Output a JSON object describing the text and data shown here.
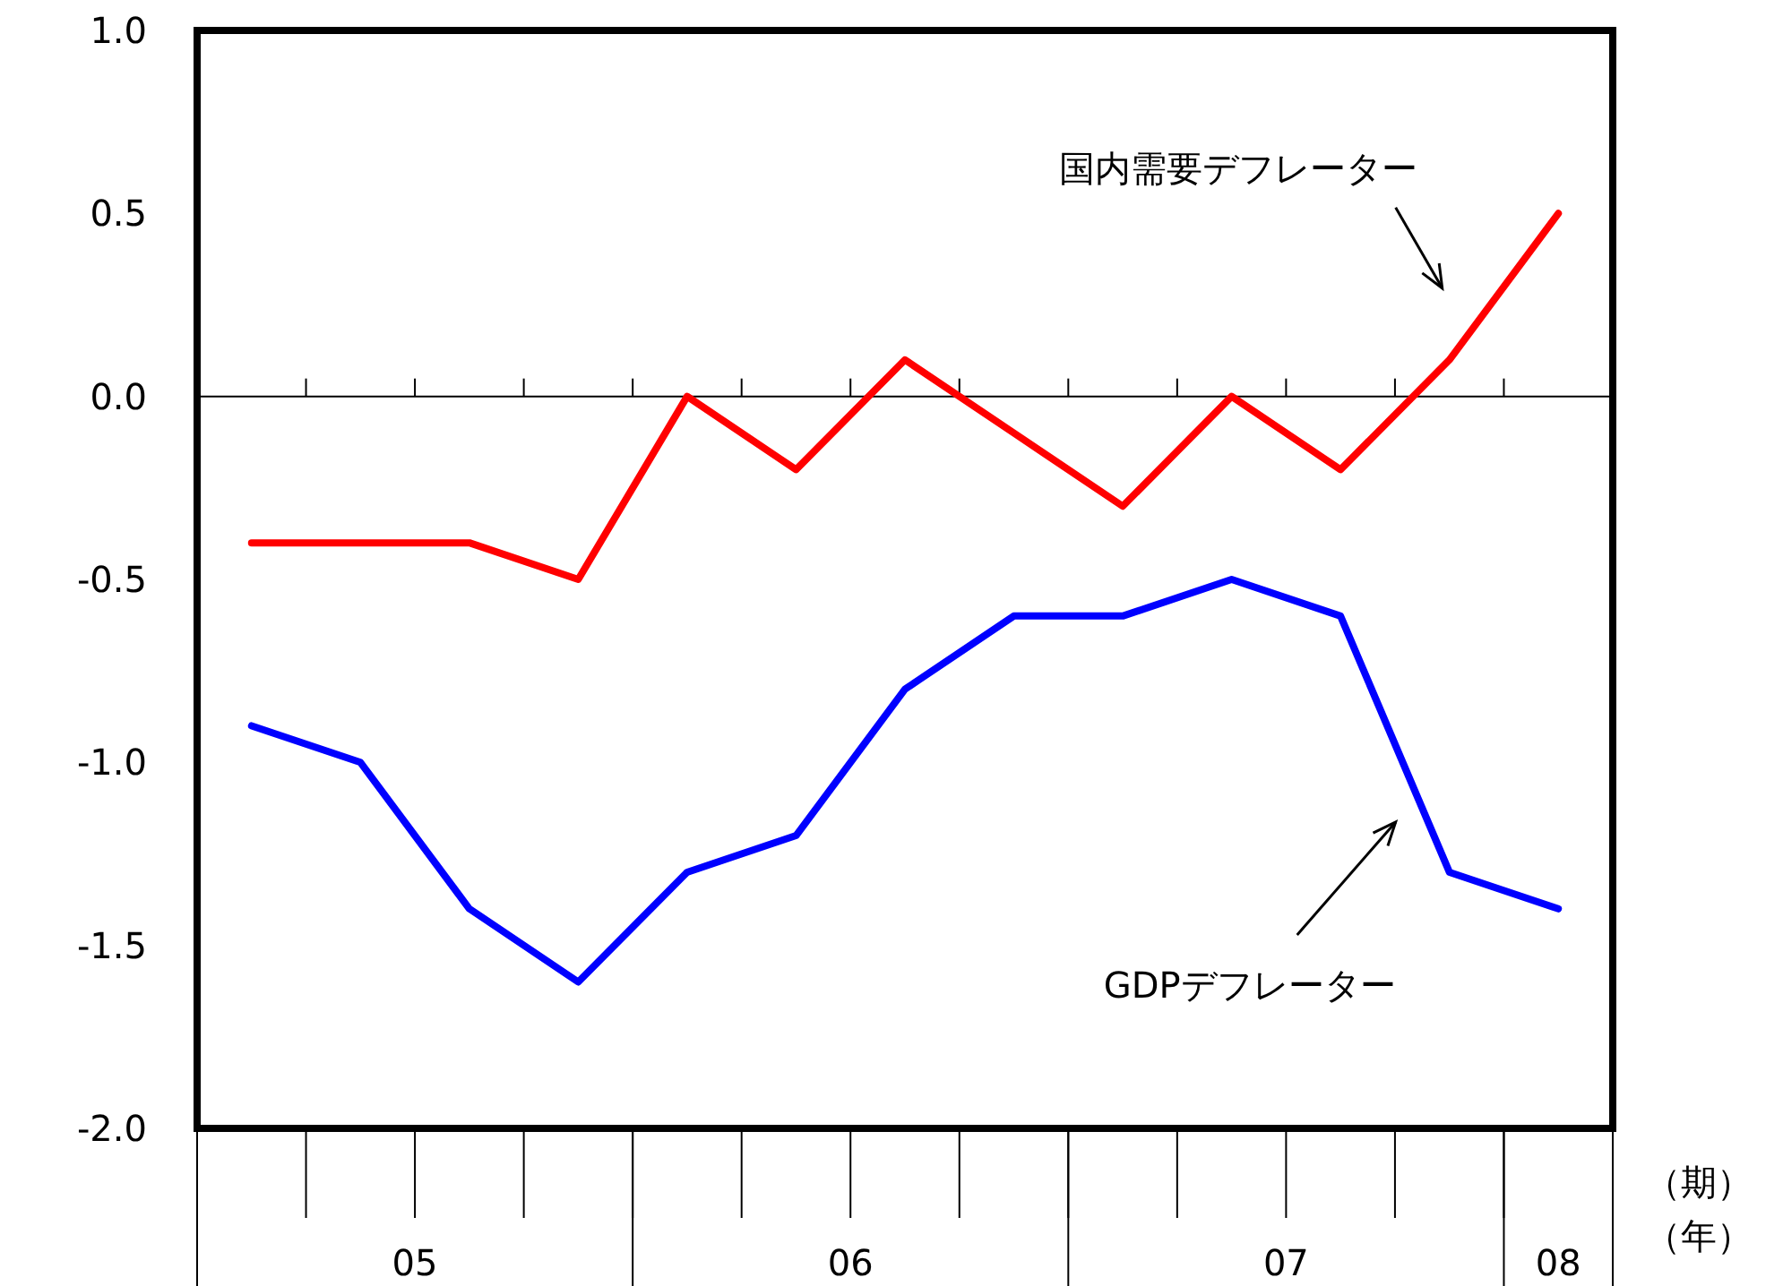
{
  "chart_data": {
    "type": "line",
    "xlabel": "（期）",
    "categories": [
      null,
      null,
      null,
      null,
      null,
      null,
      null,
      null,
      null,
      null,
      null,
      null,
      null
    ],
    "series": [
      {
        "name": "国内需要デフレーター",
        "color": "#ff0000",
        "values": [
          -0.4,
          -0.4,
          -0.4,
          -0.5,
          0.0,
          -0.2,
          0.1,
          -0.1,
          -0.3,
          0.0,
          -0.2,
          0.1,
          0.5
        ]
      },
      {
        "name": "GDPデフレーター",
        "color": "#0000ff",
        "values": [
          -0.9,
          -1.0,
          -1.4,
          -1.6,
          -1.3,
          -1.2,
          -0.8,
          -0.6,
          -0.6,
          -0.5,
          -0.6,
          -1.3,
          -1.4
        ]
      }
    ],
    "ylim": [
      -2,
      1
    ],
    "yticks": [
      {
        "value": -2,
        "label": "-2.0"
      },
      {
        "value": -1.5,
        "label": "-1.5"
      },
      {
        "value": -1,
        "label": "-1.0"
      },
      {
        "value": -0.5,
        "label": "-0.5"
      },
      {
        "value": 0,
        "label": "0.0"
      },
      {
        "value": 0.5,
        "label": "0.5"
      },
      {
        "value": 1,
        "label": "1.0"
      }
    ],
    "ref_lines": [
      {
        "axis": "y",
        "value": 0,
        "color": "#000000"
      }
    ],
    "annotations": [
      "05",
      "06",
      "07",
      "08",
      "（年）"
    ]
  }
}
